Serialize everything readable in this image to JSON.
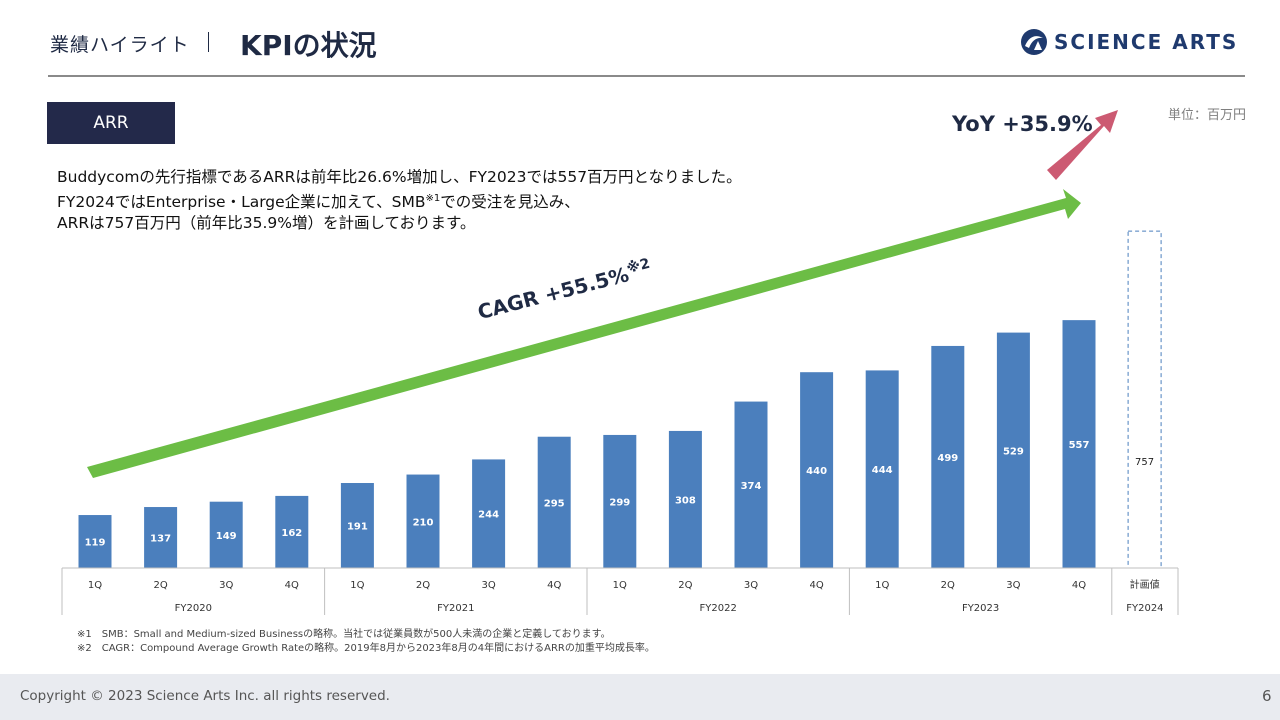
{
  "header": {
    "section": "業績ハイライト",
    "title": "KPIの状況"
  },
  "logo": {
    "text": "SCIENCE ARTS"
  },
  "badge": "ARR",
  "description": {
    "line1": "Buddycomの先行指標であるARRは前年比26.6%増加し、FY2023では557百万円となりました。",
    "line2_a": "FY2024ではEnterprise・Large企業に加えて、SMB",
    "line2_sup": "※1",
    "line2_b": "での受注を見込み、",
    "line3": "ARRは757百万円（前年比35.9%増）を計画しております。"
  },
  "unit_label": "単位：百万円",
  "annotations": {
    "yoy": "YoY +35.9%",
    "cagr": "CAGR +55.5%",
    "cagr_sup": "※2"
  },
  "chart_data": {
    "type": "bar",
    "categories": [
      "1Q",
      "2Q",
      "3Q",
      "4Q",
      "1Q",
      "2Q",
      "3Q",
      "4Q",
      "1Q",
      "2Q",
      "3Q",
      "4Q",
      "1Q",
      "2Q",
      "3Q",
      "4Q",
      "計画値"
    ],
    "groups": [
      {
        "label": "FY2020",
        "count": 4
      },
      {
        "label": "FY2021",
        "count": 4
      },
      {
        "label": "FY2022",
        "count": 4
      },
      {
        "label": "FY2023",
        "count": 4
      },
      {
        "label": "FY2024",
        "count": 1
      }
    ],
    "values": [
      119,
      137,
      149,
      162,
      191,
      210,
      244,
      295,
      299,
      308,
      374,
      440,
      444,
      499,
      529,
      557,
      757
    ],
    "planned_index": 16,
    "ylim": [
      0,
      800
    ],
    "bar_color": "#4b7fbd",
    "plan_outline_color": "#4b7fbd",
    "cagr_arrow_color": "#6cbd45",
    "yoy_arrow_color": "#cc5a72"
  },
  "footnotes": {
    "note1": "※1　SMB：Small and Medium-sized Businessの略称。当社では従業員数が500人未満の企業と定義しております。",
    "note2": "※2　CAGR：Compound Average Growth Rateの略称。2019年8月から2023年8月の4年間におけるARRの加重平均成長率。"
  },
  "footer": {
    "copyright": "Copyright © 2023 Science Arts Inc. all rights reserved.",
    "page": "6"
  }
}
